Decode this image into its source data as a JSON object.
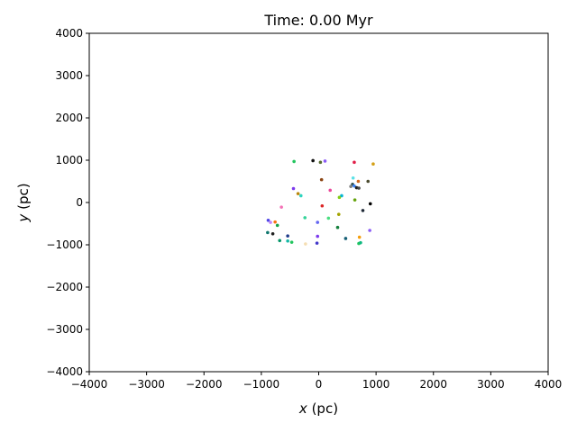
{
  "chart_data": {
    "type": "scatter",
    "title": "Time: 0.00 Myr",
    "xlabel_var": "x",
    "xlabel_unit": " (pc)",
    "ylabel_var": "y",
    "ylabel_unit": " (pc)",
    "xlim": [
      -4000,
      4000
    ],
    "ylim": [
      -4000,
      4000
    ],
    "xticks": [
      "−4000",
      "−3000",
      "−2000",
      "−1000",
      "0",
      "1000",
      "2000",
      "3000",
      "4000"
    ],
    "yticks": [
      "−4000",
      "−3000",
      "−2000",
      "−1000",
      "0",
      "1000",
      "2000",
      "3000",
      "4000"
    ],
    "grid": false,
    "points": [
      {
        "x": -430,
        "y": 970,
        "color": "#22c55e"
      },
      {
        "x": -100,
        "y": 990,
        "color": "#111111"
      },
      {
        "x": 30,
        "y": 950,
        "color": "#556b2f"
      },
      {
        "x": 110,
        "y": 980,
        "color": "#8b5cf6"
      },
      {
        "x": 620,
        "y": 950,
        "color": "#e11d48"
      },
      {
        "x": 950,
        "y": 910,
        "color": "#d4a017"
      },
      {
        "x": 50,
        "y": 540,
        "color": "#8b4513"
      },
      {
        "x": 600,
        "y": 580,
        "color": "#5ce1e6"
      },
      {
        "x": 690,
        "y": 500,
        "color": "#d2691e"
      },
      {
        "x": 860,
        "y": 500,
        "color": "#4b4b2f"
      },
      {
        "x": 590,
        "y": 430,
        "color": "#2f4f4f"
      },
      {
        "x": 620,
        "y": 390,
        "color": "#3b82f6"
      },
      {
        "x": 660,
        "y": 350,
        "color": "#1f1f1f"
      },
      {
        "x": 700,
        "y": 340,
        "color": "#444444"
      },
      {
        "x": 560,
        "y": 380,
        "color": "#808080"
      },
      {
        "x": -440,
        "y": 330,
        "color": "#7c3aed"
      },
      {
        "x": 200,
        "y": 290,
        "color": "#ec4899"
      },
      {
        "x": -360,
        "y": 210,
        "color": "#b8860b"
      },
      {
        "x": -310,
        "y": 160,
        "color": "#2dd4bf"
      },
      {
        "x": 400,
        "y": 160,
        "color": "#06b6d4"
      },
      {
        "x": 360,
        "y": 120,
        "color": "#84cc16"
      },
      {
        "x": 630,
        "y": 60,
        "color": "#65a30d"
      },
      {
        "x": 900,
        "y": -30,
        "color": "#000000"
      },
      {
        "x": 60,
        "y": -80,
        "color": "#dc2626"
      },
      {
        "x": -650,
        "y": -110,
        "color": "#f472b6"
      },
      {
        "x": 770,
        "y": -190,
        "color": "#1f2937"
      },
      {
        "x": 350,
        "y": -280,
        "color": "#a3a300"
      },
      {
        "x": -240,
        "y": -360,
        "color": "#34d399"
      },
      {
        "x": 170,
        "y": -370,
        "color": "#4ade80"
      },
      {
        "x": -880,
        "y": -420,
        "color": "#4f46e5"
      },
      {
        "x": -840,
        "y": -470,
        "color": "#c084fc"
      },
      {
        "x": -760,
        "y": -460,
        "color": "#f97316"
      },
      {
        "x": -20,
        "y": -470,
        "color": "#6366f1"
      },
      {
        "x": -720,
        "y": -540,
        "color": "#16a34a"
      },
      {
        "x": 330,
        "y": -590,
        "color": "#15803d"
      },
      {
        "x": 890,
        "y": -660,
        "color": "#8b5cf6"
      },
      {
        "x": -890,
        "y": -710,
        "color": "#0f766e"
      },
      {
        "x": -800,
        "y": -740,
        "color": "#1f1f1f"
      },
      {
        "x": -540,
        "y": -790,
        "color": "#1e3a8a"
      },
      {
        "x": -20,
        "y": -800,
        "color": "#7c3aed"
      },
      {
        "x": 470,
        "y": -850,
        "color": "#155e75"
      },
      {
        "x": 710,
        "y": -820,
        "color": "#f59e0b"
      },
      {
        "x": -680,
        "y": -900,
        "color": "#059669"
      },
      {
        "x": -540,
        "y": -910,
        "color": "#14b8a6"
      },
      {
        "x": -470,
        "y": -940,
        "color": "#22c55e"
      },
      {
        "x": -30,
        "y": -960,
        "color": "#4338ca"
      },
      {
        "x": -230,
        "y": -980,
        "color": "#f5deb3"
      },
      {
        "x": 700,
        "y": -970,
        "color": "#22c55e"
      },
      {
        "x": 730,
        "y": -950,
        "color": "#10b981"
      }
    ]
  }
}
